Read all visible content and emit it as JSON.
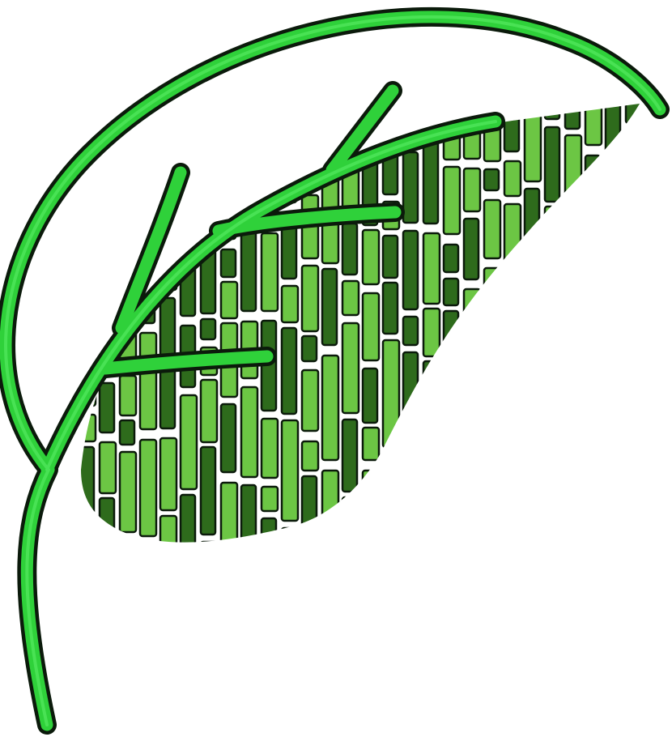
{
  "logo": {
    "icon": "leaf-logo-icon",
    "colors": {
      "stroke_green": "#2fd13a",
      "outline": "#0b1a0b",
      "bar_light": "#6cc644",
      "bar_dark": "#2e6b1c",
      "background": "#ffffff"
    }
  }
}
